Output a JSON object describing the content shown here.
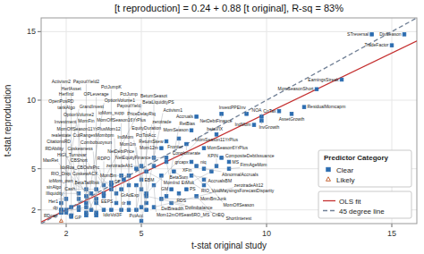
{
  "chart_data": {
    "type": "scatter",
    "title": "[t reproduction] = 0.24 + 0.88 [t original], R-sq = 83%",
    "xlabel": "t-stat original study",
    "ylabel": "t-stat reproduction",
    "xlim": [
      1,
      16
    ],
    "ylim": [
      1,
      16
    ],
    "xticks": [
      2,
      5,
      10,
      15
    ],
    "yticks": [
      2,
      5,
      10,
      15
    ],
    "grid": true,
    "legend": "lower right",
    "legend_title": "Predictor Category",
    "series": [
      {
        "name": "Clear",
        "type": "scatter",
        "marker": "square",
        "color": "#2b6cb0",
        "x": [
          15.5,
          15.0,
          14.2,
          13.0,
          12.0,
          11.5,
          11.0,
          10.5,
          9.8,
          9.5,
          9.8,
          9.2,
          8.2,
          7.2,
          8.0,
          7.0,
          6.5,
          6.8,
          7.5,
          6.0,
          5.8,
          6.0,
          7.0,
          7.2,
          6.0,
          5.5,
          5.0,
          5.2,
          5.8,
          6.3,
          4.8,
          4.5,
          5.0,
          4.2,
          4.3,
          4.8,
          3.8,
          4.2,
          5.5,
          6.2,
          6.5,
          6.8,
          3.5,
          3.8,
          3.5,
          3.2,
          3.5,
          5.0,
          5.2,
          4.0,
          5.8,
          7.0,
          7.5,
          8.2,
          8.5,
          8.0,
          8.5,
          7.8,
          7.5,
          7.5,
          7.2,
          3.0,
          2.8,
          2.5,
          3.2,
          2.5,
          2.0,
          3.2,
          4.0,
          4.5,
          5.2,
          1.8,
          2.2,
          2.5,
          2.8,
          3.5,
          4.2,
          4.8,
          5.2,
          5.0,
          5.5,
          3.0,
          3.8,
          4.5,
          2.5,
          2.0,
          1.8,
          1.8,
          2.8,
          3.2,
          2.0,
          2.2,
          2.8,
          3.2,
          2.2,
          5.0,
          1.8,
          6.2,
          6.0,
          1.8,
          2.8,
          4.5,
          5.5,
          5.2,
          3.8,
          2.8
        ],
        "values": [
          14.8,
          14.0,
          14.8,
          11.5,
          10.8,
          9.5,
          9.0,
          9.2,
          8.8,
          8.2,
          8.5,
          9.0,
          9.0,
          8.8,
          7.5,
          7.8,
          7.2,
          6.8,
          6.5,
          7.0,
          6.5,
          5.8,
          5.5,
          5.2,
          5.5,
          5.8,
          5.2,
          4.8,
          4.5,
          4.8,
          5.0,
          4.5,
          4.2,
          4.5,
          4.2,
          3.8,
          4.0,
          3.5,
          3.8,
          3.5,
          3.2,
          3.5,
          3.8,
          3.5,
          3.2,
          3.5,
          3.0,
          3.5,
          3.0,
          3.2,
          2.8,
          4.5,
          5.0,
          5.8,
          5.5,
          5.2,
          5.0,
          4.8,
          4.2,
          3.8,
          3.0,
          3.2,
          3.0,
          3.2,
          2.8,
          2.8,
          2.8,
          2.5,
          2.5,
          2.5,
          2.5,
          2.5,
          2.2,
          2.2,
          2.2,
          2.0,
          2.0,
          2.0,
          2.0,
          2.2,
          2.2,
          2.0,
          2.0,
          2.0,
          2.0,
          2.0,
          2.0,
          1.8,
          1.8,
          1.8,
          1.8,
          1.6,
          1.6,
          1.6,
          1.5,
          1.2,
          1.8,
          2.5,
          3.0,
          2.0,
          3.5,
          3.8,
          5.2,
          3.2,
          3.8,
          2.5
        ],
        "labels": [
          "DivSeason",
          "TradeFactor",
          "STreversal",
          "EarningsStreak",
          "MomSeasonShort",
          "ResidualMomcapm",
          "AssetGrowth",
          "CnTax",
          "NOA",
          "IndMom",
          "InvGrowth",
          "InvestPPEInv",
          "NetDebtFinance",
          "Accruals",
          "MomSeason11YrPlus",
          "MomSeason",
          "Frontier",
          "Conglomerate",
          "MomSeason6YrPlus",
          "ReturnSkew",
          "Mom12m",
          "NetEquityFinance",
          "grcapx",
          "niq",
          "BetaSum",
          "PctTotAcc",
          "zerotradeAlt1",
          "MomInd",
          "DelBreadth",
          "RIO_VoidMaysingsForecastDisparity",
          "NetDebtPrice",
          "MomBm",
          "EBM",
          "CF",
          "GrAdExp",
          "PctAcc",
          "BetaTailRisk",
          "IdioVol3F",
          "Mom12mOffSeas6RO_MS",
          "GM",
          "RDS",
          "PS",
          "CoskewACX",
          "EEPS",
          "IdxRoa_CBOshrPrc",
          "Cash",
          "RDPO",
          "Mom1m",
          "DolImbalance",
          "CBShort",
          "MomBmJunk",
          "AccrualsBM",
          "AbnormalAccruals",
          "CompositeDebtIssuance",
          "MS",
          "KPIN",
          "FirmAgeMom",
          "EtMult",
          "MomOffSeason",
          "XFin",
          "CnEQ",
          "ioMom_own",
          "HiGI_Turnovar",
          "Illiquidity",
          "Coskewness",
          "RIO_Disp",
          "Her1",
          "Combobuoysun",
          "CutRangesMombpm",
          "tlr",
          "EquityDuration",
          "MomOffSeason11YrPlusMom12",
          "GP",
          "CitationsRD",
          "RDcap",
          "MaxRet",
          "MomOffSeason16YrPlus",
          "zerotrade",
          "IndMom",
          "PriceDelayRiq",
          "zerotradeAlt12",
          "Investment",
          "ioMom_supp",
          "PayoutYield",
          "OptionVolume2",
          "tankAlgo",
          "GrandInvest",
          "OpenPosRD",
          "OptionVolume1",
          "OPLeverage",
          "HerfInd",
          "HerfAsset",
          "BetaLiquidityPS",
          "RDAbility",
          "dp",
          "Activism1",
          "realestate",
          "ShortInterest",
          "RetBias",
          "sinAlgo",
          "MomFin",
          "PctJump",
          "BetumSeasot",
          "betaVIX",
          "PctJumpK",
          "PayoutYield2"
        ]
      },
      {
        "name": "Likely",
        "type": "scatter",
        "marker": "triangle-open",
        "color": "#c05621",
        "x": [
          1.8
        ],
        "values": [
          1.2
        ],
        "labels": [
          "Activism2"
        ]
      },
      {
        "name": "OLS fit",
        "type": "line",
        "line_style": "solid",
        "color": "#c53030",
        "x": [
          1,
          16
        ],
        "values": [
          1.12,
          14.32
        ]
      },
      {
        "name": "45 degree line",
        "type": "line",
        "line_style": "dashed",
        "color": "#718096",
        "x": [
          1,
          16
        ],
        "values": [
          1,
          16
        ]
      }
    ]
  }
}
